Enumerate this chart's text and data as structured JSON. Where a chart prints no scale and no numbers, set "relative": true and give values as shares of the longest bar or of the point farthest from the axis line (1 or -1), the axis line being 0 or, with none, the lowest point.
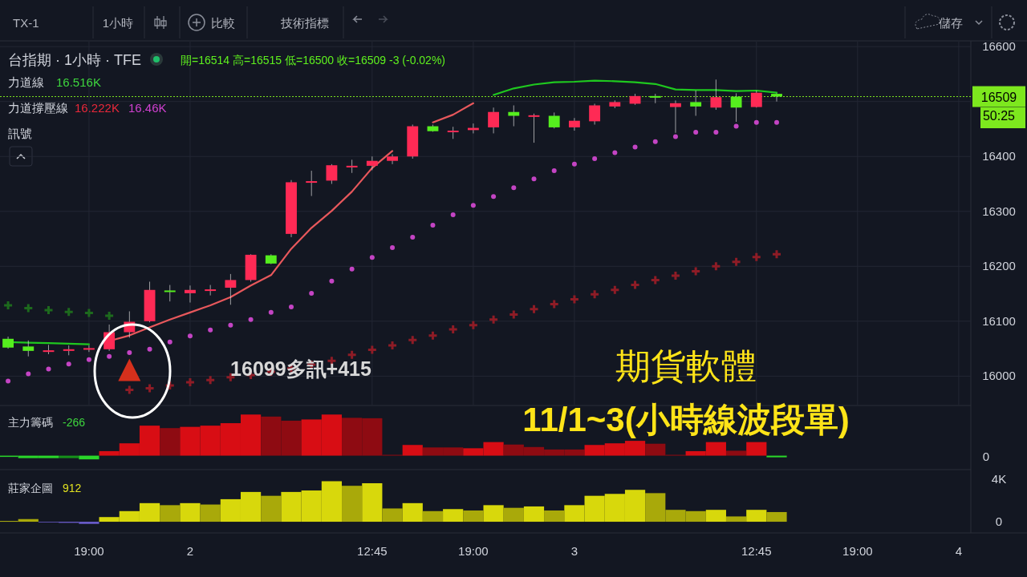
{
  "chart_data": [
    {
      "type": "candlestick",
      "title": "台指期 · 1小時 · TFE",
      "subtitle": "開=16514 高=16515 低=16500 收=16509 -3 (-0.02%)",
      "categories": [
        null,
        null,
        null,
        null,
        null,
        null,
        null,
        null,
        null,
        null,
        null,
        null,
        null,
        null,
        null,
        null,
        null,
        null,
        null,
        null,
        null,
        null,
        null,
        null,
        null,
        null,
        null,
        null,
        null,
        null,
        null,
        null,
        null,
        null,
        null,
        null,
        null,
        null,
        null,
        null,
        null,
        null,
        null,
        null,
        null,
        null,
        null,
        null
      ],
      "ohlc": [
        [
          16068,
          16072,
          16050,
          16052
        ],
        [
          16054,
          16065,
          16036,
          16046
        ],
        [
          16046,
          16057,
          16040,
          16047
        ],
        [
          16046,
          16056,
          16038,
          16049
        ],
        [
          16049,
          16056,
          16044,
          16051
        ],
        [
          16049,
          16094,
          16046,
          16080
        ],
        [
          16080,
          16118,
          16070,
          16099
        ],
        [
          16100,
          16172,
          16098,
          16157
        ],
        [
          16156,
          16166,
          16136,
          16154
        ],
        [
          16151,
          16165,
          16134,
          16157
        ],
        [
          16156,
          16166,
          16147,
          16158
        ],
        [
          16161,
          16186,
          16130,
          16175
        ],
        [
          16175,
          16222,
          16172,
          16221
        ],
        [
          16220,
          16222,
          16204,
          16205
        ],
        [
          16259,
          16357,
          16253,
          16353
        ],
        [
          16353,
          16374,
          16328,
          16355
        ],
        [
          16356,
          16386,
          16350,
          16384
        ],
        [
          16382,
          16394,
          16370,
          16383
        ],
        [
          16383,
          16400,
          16375,
          16392
        ],
        [
          16392,
          16404,
          16386,
          16400
        ],
        [
          16400,
          16458,
          16396,
          16455
        ],
        [
          16455,
          16458,
          16445,
          16446
        ],
        [
          16446,
          16454,
          16432,
          16447
        ],
        [
          16448,
          16460,
          16442,
          16452
        ],
        [
          16453,
          16489,
          16442,
          16481
        ],
        [
          16481,
          16493,
          16455,
          16474
        ],
        [
          16474,
          16478,
          16425,
          16475
        ],
        [
          16474,
          16480,
          16451,
          16453
        ],
        [
          16453,
          16470,
          16447,
          16465
        ],
        [
          16464,
          16496,
          16458,
          16493
        ],
        [
          16491,
          16502,
          16488,
          16499
        ],
        [
          16496,
          16514,
          16494,
          16510
        ],
        [
          16510,
          16514,
          16497,
          16507
        ],
        [
          16490,
          16502,
          16443,
          16497
        ],
        [
          16499,
          16520,
          16474,
          16491
        ],
        [
          16489,
          16540,
          16485,
          16508
        ],
        [
          16509,
          16515,
          16463,
          16489
        ],
        [
          16490,
          16520,
          16489,
          16516
        ],
        [
          16514,
          16515,
          16500,
          16509
        ],
        null,
        null,
        null,
        null,
        null,
        null,
        null,
        null,
        null
      ],
      "series": [
        {
          "type": "line",
          "color": "#1fc81f",
          "values": [
            16062,
            16061,
            16060,
            16059,
            16058,
            null,
            null,
            null,
            null,
            null,
            null,
            null,
            null,
            null,
            null,
            null,
            null,
            null,
            null,
            null,
            null,
            null,
            null,
            null,
            16512,
            16524,
            16531,
            16535,
            16536,
            16538,
            16537,
            16535,
            16532,
            16522,
            16521,
            16521,
            16519,
            16520,
            16516,
            null,
            null,
            null,
            null,
            null,
            null,
            null,
            null,
            null
          ]
        },
        {
          "type": "line",
          "color": "#e8585c",
          "values": [
            null,
            null,
            null,
            null,
            null,
            16064,
            16074,
            16089,
            16103,
            16116,
            16129,
            16144,
            16165,
            16184,
            16232,
            16270,
            16301,
            16336,
            16379,
            16410,
            null,
            16462,
            16476,
            16497,
            null,
            null,
            null,
            null,
            null,
            null,
            null,
            null,
            null,
            null,
            null,
            null,
            null,
            null,
            null,
            null,
            null,
            null,
            null,
            null,
            null,
            null,
            null,
            null
          ]
        },
        {
          "type": "scatter",
          "marker": "circle",
          "color": "#c444c4",
          "values": [
            15991,
            16004,
            16013,
            16022,
            16030,
            16036,
            16043,
            16049,
            16062,
            16073,
            16084,
            16093,
            16103,
            16116,
            16126,
            16151,
            16173,
            16195,
            16216,
            16234,
            16253,
            16275,
            16294,
            16311,
            16327,
            16343,
            16359,
            16374,
            16386,
            16396,
            16407,
            16417,
            16427,
            16436,
            16444,
            16444,
            16455,
            16462,
            16462,
            null,
            null,
            null,
            null,
            null,
            null,
            null,
            null,
            null
          ]
        },
        {
          "type": "scatter",
          "marker": "cross",
          "color": "#1d6a1d",
          "values": [
            16129,
            16124,
            16120,
            16117,
            16115,
            16110,
            null,
            null,
            null,
            null,
            null,
            null,
            null,
            null,
            null,
            null,
            null,
            null,
            null,
            null,
            null,
            null,
            null,
            null,
            null,
            null,
            null,
            null,
            null,
            null,
            null,
            null,
            null,
            null,
            null,
            null,
            null,
            null,
            null,
            null,
            null,
            null,
            null,
            null,
            null,
            null,
            null,
            null
          ]
        },
        {
          "type": "scatter",
          "marker": "cross",
          "color": "#8e1c26",
          "values": [
            null,
            null,
            null,
            null,
            null,
            null,
            15975,
            15978,
            15983,
            15989,
            15993,
            15998,
            16002,
            16008,
            16014,
            16021,
            16028,
            16039,
            16048,
            16056,
            16066,
            16074,
            16085,
            16093,
            16103,
            16112,
            16122,
            16131,
            16140,
            16149,
            16157,
            16166,
            16175,
            16183,
            16191,
            16200,
            16208,
            16217,
            16222,
            null,
            null,
            null,
            null,
            null,
            null,
            null,
            null,
            null
          ]
        },
        {
          "type": "scatter",
          "marker": "triangle",
          "color": "#d5301c",
          "values": [
            null,
            null,
            null,
            null,
            null,
            null,
            16010,
            null,
            null,
            null,
            null,
            null,
            null,
            null,
            null,
            null,
            null,
            null,
            null,
            null,
            null,
            null,
            null,
            null,
            null,
            null,
            null,
            null,
            null,
            null,
            null,
            null,
            null,
            null,
            null,
            null,
            null,
            null,
            null,
            null,
            null,
            null,
            null,
            null,
            null,
            null,
            null,
            null
          ]
        }
      ],
      "ylim": [
        15948,
        16609
      ],
      "yticks": [
        16000,
        16100,
        16200,
        16300,
        16400,
        {
          "value": 16500,
          "label": null
        },
        16600
      ],
      "grid": true,
      "tick_labels": "y",
      "ref_lines": [
        {
          "axis": "y",
          "value": 16509,
          "label": "16509",
          "color": "#7de81e",
          "line_style": "dotted"
        }
      ],
      "annotations": [
        "TX-1",
        "1小時",
        "比較",
        "技術指標",
        "儲存",
        "力道線",
        "16.516K",
        "力道撐壓線",
        "16.222K",
        "16.46K",
        "訊號",
        "16099多訊+415",
        "期貨軟體",
        "11/1~3(小時線波段單)",
        "50:25"
      ]
    },
    {
      "type": "bar",
      "relative": true,
      "tick_labels": false,
      "categories": [
        null,
        null,
        null,
        null,
        null,
        null,
        null,
        null,
        null,
        null,
        null,
        null,
        null,
        null,
        null,
        null,
        null,
        null,
        null,
        null,
        null,
        null,
        null,
        null,
        null,
        null,
        null,
        null,
        null,
        null,
        null,
        null,
        null,
        null,
        null,
        null,
        null,
        null,
        null,
        null,
        null,
        null,
        null,
        null,
        null,
        null,
        null,
        null
      ],
      "values": [
        -0.03,
        -0.06,
        -0.06,
        -0.06,
        -0.09,
        0.11,
        0.3,
        0.73,
        0.67,
        0.7,
        0.73,
        0.79,
        1,
        0.95,
        0.85,
        0.88,
        1,
        0.92,
        0.91,
        0.02,
        0.26,
        0.2,
        0.2,
        0.18,
        0.33,
        0.27,
        0.21,
        0.15,
        0.15,
        0.26,
        0.3,
        0.36,
        0.29,
        0.02,
        0.11,
        0.33,
        0.12,
        0.33,
        -0.04,
        null,
        null,
        null,
        null,
        null,
        null,
        null,
        null,
        null
      ],
      "colors": [
        "#2ad62a",
        "#2ad62a",
        "#2ad62a",
        "#16901a",
        "#2ad62a",
        "#d80d14",
        "#d80d14",
        "#d80d14",
        "#8e0b12",
        "#d80d14",
        "#d80d14",
        "#d80d14",
        "#d80d14",
        "#8e0b12",
        "#8e0b12",
        "#d80d14",
        "#d80d14",
        "#8e0b12",
        "#8e0b12",
        "#8e0b12",
        "#d80d14",
        "#8e0b12",
        "#8e0b12",
        "#d80d14",
        "#d80d14",
        "#8e0b12",
        "#8e0b12",
        "#8e0b12",
        "#8e0b12",
        "#d80d14",
        "#d80d14",
        "#d80d14",
        "#8e0b12",
        "#8e0b12",
        "#d80d14",
        "#d80d14",
        "#8e0b12",
        "#d80d14",
        "#2ad62a",
        null,
        null,
        null,
        null,
        null,
        null,
        null,
        null,
        null
      ],
      "annotations": [
        "主力籌碼",
        "-266",
        "0"
      ]
    },
    {
      "type": "bar",
      "categories": [
        null,
        null,
        null,
        null,
        "19:00",
        null,
        null,
        null,
        null,
        "2",
        null,
        null,
        null,
        null,
        null,
        null,
        null,
        null,
        "12:45",
        null,
        null,
        null,
        null,
        "19:00",
        null,
        null,
        null,
        null,
        "3",
        null,
        null,
        null,
        null,
        null,
        null,
        null,
        null,
        "12:45",
        null,
        null,
        null,
        null,
        "19:00",
        null,
        null,
        null,
        null,
        "4"
      ],
      "values": [
        60,
        250,
        -60,
        -100,
        -200,
        440,
        1000,
        1750,
        1560,
        1750,
        1620,
        2120,
        2800,
        2440,
        2800,
        2940,
        3810,
        3380,
        3620,
        1250,
        1750,
        1000,
        1190,
        1060,
        1560,
        1310,
        1440,
        1060,
        1560,
        2440,
        2620,
        3000,
        2690,
        1120,
        1000,
        1120,
        500,
        1120,
        912,
        null,
        null,
        null,
        null,
        null,
        null,
        null,
        null,
        null
      ],
      "colors": [
        "#d8d80c",
        "#a9a90a",
        "#6a5ccc",
        "#6a5ccc",
        "#6a5ccc",
        "#d8d80c",
        "#d8d80c",
        "#d8d80c",
        "#a9a90a",
        "#d8d80c",
        "#a9a90a",
        "#d8d80c",
        "#d8d80c",
        "#a9a90a",
        "#d8d80c",
        "#d8d80c",
        "#d8d80c",
        "#a9a90a",
        "#d8d80c",
        "#a9a90a",
        "#d8d80c",
        "#a9a90a",
        "#d8d80c",
        "#a9a90a",
        "#d8d80c",
        "#a9a90a",
        "#d8d80c",
        "#a9a90a",
        "#d8d80c",
        "#d8d80c",
        "#d8d80c",
        "#d8d80c",
        "#a9a90a",
        "#a9a90a",
        "#a9a90a",
        "#d8d80c",
        "#a9a90a",
        "#d8d80c",
        "#a9a90a",
        null,
        null,
        null,
        null,
        null,
        null,
        null,
        null,
        null
      ],
      "ylim": [
        -1050,
        4750
      ],
      "yticks": [
        0,
        {
          "value": 4000,
          "label": "4K"
        }
      ],
      "annotations": [
        "莊家企圖",
        "912"
      ]
    }
  ]
}
